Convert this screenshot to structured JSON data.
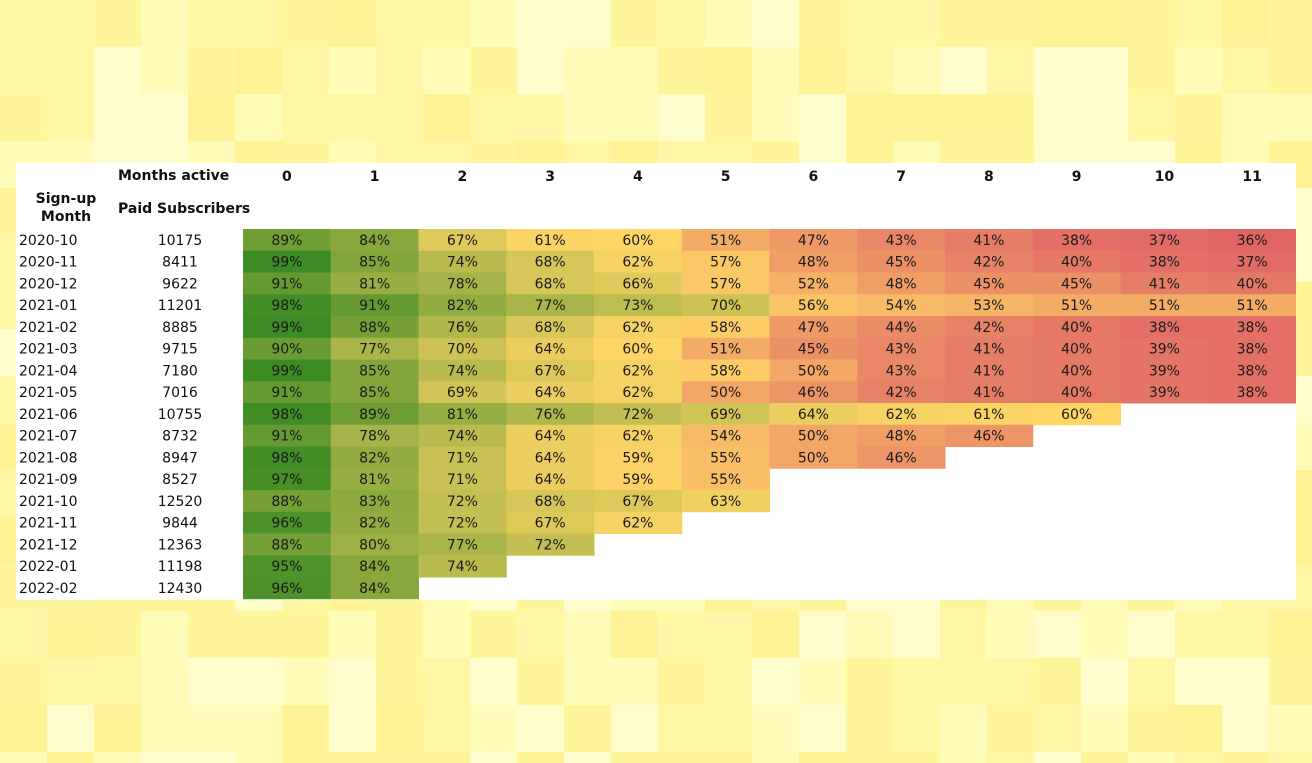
{
  "headers": {
    "months_active": "Months active",
    "signup_month_line1": "Sign-up",
    "signup_month_line2": "Month",
    "paid_subscribers": "Paid Subscribers"
  },
  "chart_data": {
    "type": "heatmap",
    "x_label": "Months active",
    "columns": [
      "0",
      "1",
      "2",
      "3",
      "4",
      "5",
      "6",
      "7",
      "8",
      "9",
      "10",
      "11"
    ],
    "rows": [
      {
        "month": "2020-10",
        "subscribers": "10175",
        "values": [
          89,
          84,
          67,
          61,
          60,
          51,
          47,
          43,
          41,
          38,
          37,
          36
        ]
      },
      {
        "month": "2020-11",
        "subscribers": "8411",
        "values": [
          99,
          85,
          74,
          68,
          62,
          57,
          48,
          45,
          42,
          40,
          38,
          37
        ]
      },
      {
        "month": "2020-12",
        "subscribers": "9622",
        "values": [
          91,
          81,
          78,
          68,
          66,
          57,
          52,
          48,
          45,
          45,
          41,
          40
        ]
      },
      {
        "month": "2021-01",
        "subscribers": "11201",
        "values": [
          98,
          91,
          82,
          77,
          73,
          70,
          56,
          54,
          53,
          51,
          51,
          51
        ]
      },
      {
        "month": "2021-02",
        "subscribers": "8885",
        "values": [
          99,
          88,
          76,
          68,
          62,
          58,
          47,
          44,
          42,
          40,
          38,
          38
        ]
      },
      {
        "month": "2021-03",
        "subscribers": "9715",
        "values": [
          90,
          77,
          70,
          64,
          60,
          51,
          45,
          43,
          41,
          40,
          39,
          38
        ]
      },
      {
        "month": "2021-04",
        "subscribers": "7180",
        "values": [
          99,
          85,
          74,
          67,
          62,
          58,
          50,
          43,
          41,
          40,
          39,
          38
        ]
      },
      {
        "month": "2021-05",
        "subscribers": "7016",
        "values": [
          91,
          85,
          69,
          64,
          62,
          50,
          46,
          42,
          41,
          40,
          39,
          38
        ]
      },
      {
        "month": "2021-06",
        "subscribers": "10755",
        "values": [
          98,
          89,
          81,
          76,
          72,
          69,
          64,
          62,
          61,
          60
        ]
      },
      {
        "month": "2021-07",
        "subscribers": "8732",
        "values": [
          91,
          78,
          74,
          64,
          62,
          54,
          50,
          48,
          46
        ]
      },
      {
        "month": "2021-08",
        "subscribers": "8947",
        "values": [
          98,
          82,
          71,
          64,
          59,
          55,
          50,
          46
        ]
      },
      {
        "month": "2021-09",
        "subscribers": "8527",
        "values": [
          97,
          81,
          71,
          64,
          59,
          55
        ]
      },
      {
        "month": "2021-10",
        "subscribers": "12520",
        "values": [
          88,
          83,
          72,
          68,
          67,
          63
        ]
      },
      {
        "month": "2021-11",
        "subscribers": "9844",
        "values": [
          96,
          82,
          72,
          67,
          62
        ]
      },
      {
        "month": "2021-12",
        "subscribers": "12363",
        "values": [
          88,
          80,
          77,
          72
        ]
      },
      {
        "month": "2022-01",
        "subscribers": "11198",
        "values": [
          95,
          84,
          74
        ]
      },
      {
        "month": "2022-02",
        "subscribers": "12430",
        "values": [
          96,
          84
        ]
      }
    ],
    "value_suffix": "%",
    "color_scale": {
      "low": "#e06666",
      "mid": "#ffd666",
      "high": "#3d8b24"
    },
    "grid": false
  }
}
